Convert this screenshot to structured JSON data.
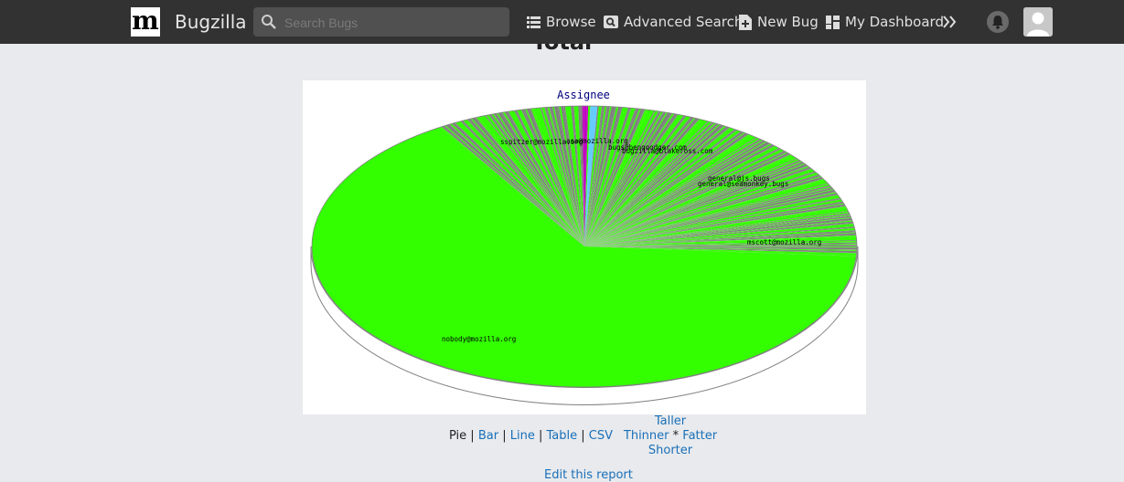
{
  "header": {
    "logo_letter": "m",
    "brand": "Bugzilla",
    "search_placeholder": "Search Bugs",
    "nav": [
      {
        "label": "Browse",
        "icon": "list-icon"
      },
      {
        "label": "Advanced Search",
        "icon": "advanced-search-icon"
      },
      {
        "label": "New Bug",
        "icon": "new-bug-icon"
      },
      {
        "label": "My Dashboard",
        "icon": "dashboard-icon"
      }
    ],
    "more_icon": "double-chevron-right-icon",
    "notifications_icon": "bell-icon",
    "avatar_icon": "user-avatar-icon"
  },
  "page": {
    "title": "Total",
    "formats": {
      "pie": "Pie",
      "bar": "Bar",
      "line": "Line",
      "table": "Table",
      "csv": "CSV"
    },
    "sizes": {
      "taller": "Taller",
      "thinner": "Thinner",
      "separator": "*",
      "fatter": "Fatter",
      "shorter": "Shorter"
    },
    "edit_link": "Edit this report"
  },
  "chart_data": {
    "type": "pie",
    "title": "Assignee",
    "colors": {
      "main": "#33ff00",
      "small": "#808080",
      "accent1": "#c000c0",
      "accent2": "#66ccff"
    },
    "labels": [
      "sspitzer@mozilla.org",
      "asa@mozilla.org",
      "bugs@bengoodger.com",
      "bugzilla@blakeross.com",
      "general@js.bugs",
      "general@seamonkey.bugs",
      "mscott@mozilla.org",
      "nobody@mozilla.org"
    ]
  }
}
